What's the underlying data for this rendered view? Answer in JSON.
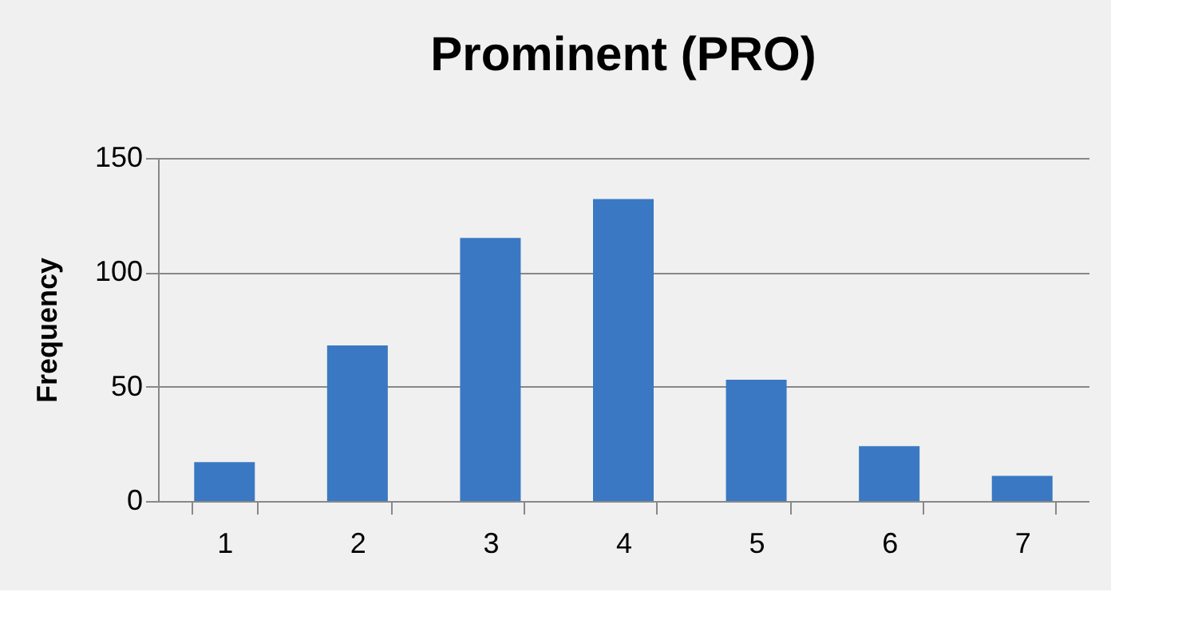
{
  "chart_data": {
    "type": "bar",
    "title": "Prominent (PRO)",
    "ylabel": "Frequency",
    "categories": [
      "1",
      "2",
      "3",
      "4",
      "5",
      "6",
      "7"
    ],
    "values": [
      17,
      68,
      115,
      132,
      53,
      24,
      11
    ],
    "color": "#3a78c3",
    "ylim": [
      0,
      150
    ],
    "yticks": [
      0,
      50,
      100,
      150
    ],
    "grid": "y"
  }
}
